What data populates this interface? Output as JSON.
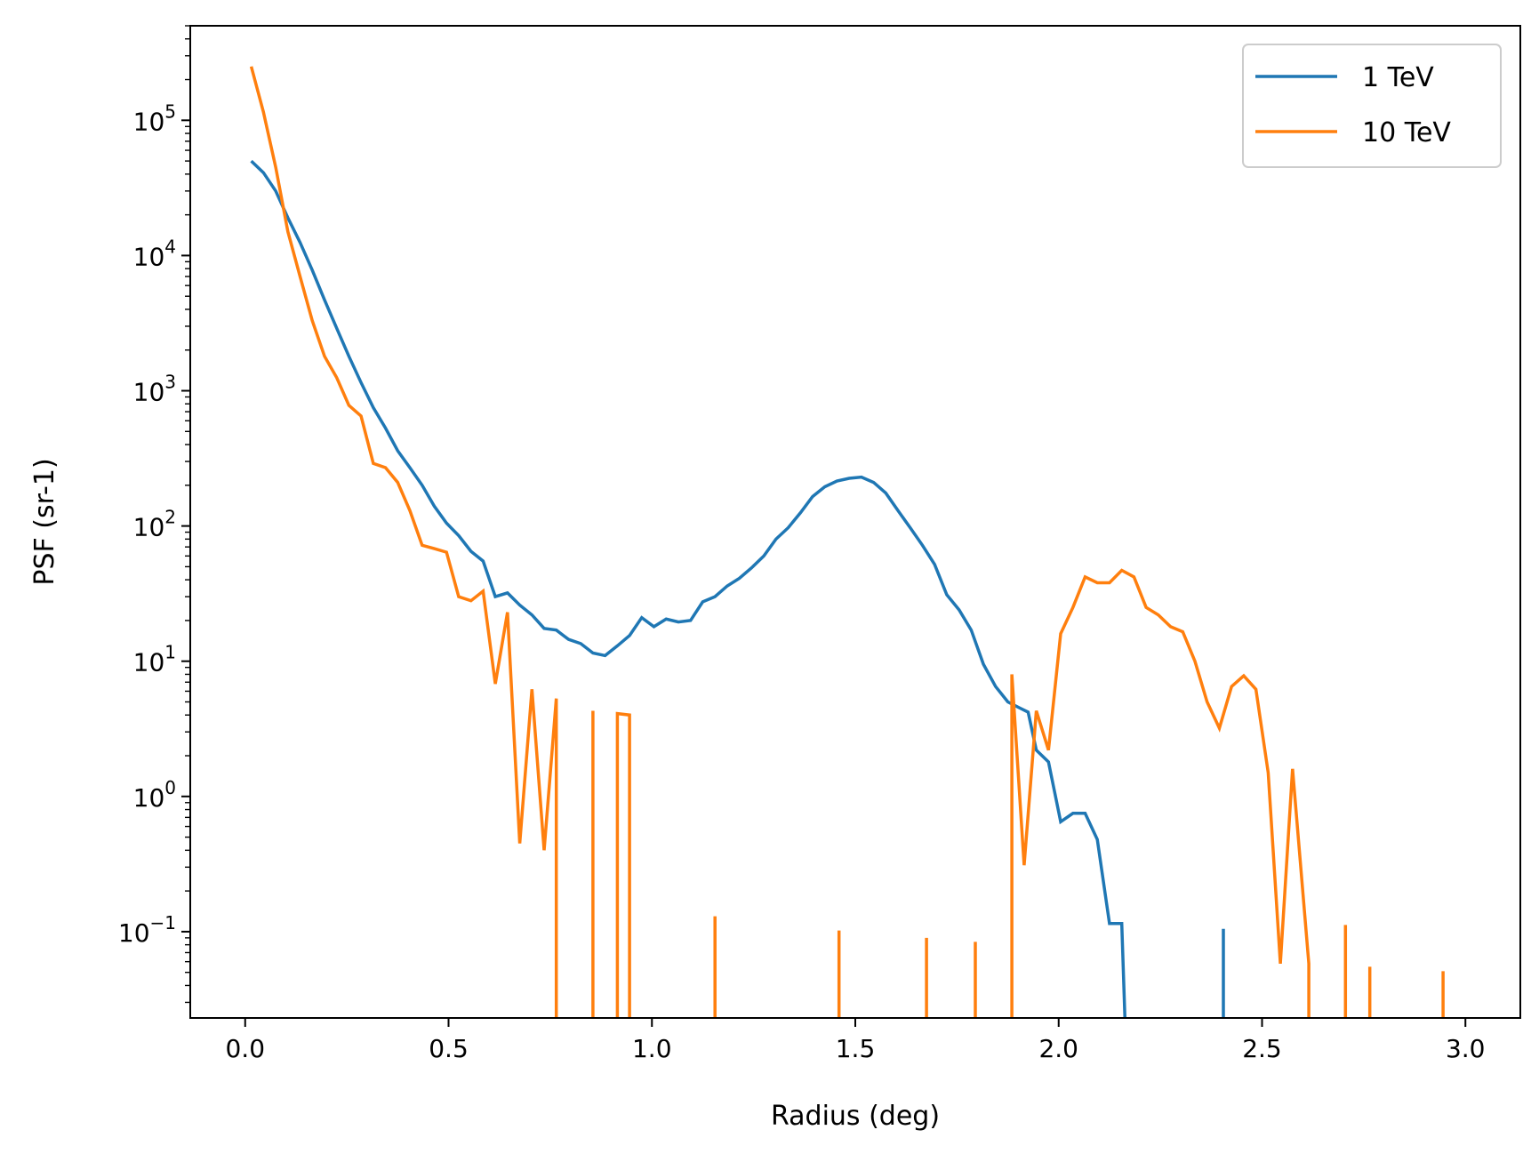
{
  "chart_data": {
    "type": "line",
    "xlabel": "Radius (deg)",
    "ylabel": "PSF (sr-1)",
    "xlim": [
      -0.135,
      3.135
    ],
    "ylim": [
      0.023,
      500000
    ],
    "yscale": "log",
    "grid": false,
    "legend": "top-right",
    "x_ticks": [
      "0.0",
      "0.5",
      "1.0",
      "1.5",
      "2.0",
      "2.5",
      "3.0"
    ],
    "y_ticks": [
      {
        "base": "10",
        "exp": "−1"
      },
      {
        "base": "10",
        "exp": "0"
      },
      {
        "base": "10",
        "exp": "1"
      },
      {
        "base": "10",
        "exp": "2"
      },
      {
        "base": "10",
        "exp": "3"
      },
      {
        "base": "10",
        "exp": "4"
      },
      {
        "base": "10",
        "exp": "5"
      }
    ],
    "series": [
      {
        "name": "1 TeV",
        "color": "#1f77b4",
        "points": [
          [
            0.015,
            50000
          ],
          [
            0.045,
            41000
          ],
          [
            0.075,
            30000
          ],
          [
            0.105,
            19000
          ],
          [
            0.135,
            12500
          ],
          [
            0.165,
            7800
          ],
          [
            0.195,
            4700
          ],
          [
            0.225,
            2900
          ],
          [
            0.255,
            1800
          ],
          [
            0.285,
            1150
          ],
          [
            0.315,
            750
          ],
          [
            0.345,
            530
          ],
          [
            0.375,
            360
          ],
          [
            0.405,
            270
          ],
          [
            0.435,
            200
          ],
          [
            0.465,
            140
          ],
          [
            0.495,
            105
          ],
          [
            0.525,
            85
          ],
          [
            0.555,
            65
          ],
          [
            0.585,
            55
          ],
          [
            0.615,
            30
          ],
          [
            0.645,
            32
          ],
          [
            0.675,
            26
          ],
          [
            0.705,
            22
          ],
          [
            0.735,
            17.5
          ],
          [
            0.765,
            17
          ],
          [
            0.795,
            14.5
          ],
          [
            0.825,
            13.5
          ],
          [
            0.855,
            11.5
          ],
          [
            0.885,
            11
          ],
          [
            0.915,
            13
          ],
          [
            0.945,
            15.5
          ],
          [
            0.975,
            21
          ],
          [
            1.005,
            18
          ],
          [
            1.035,
            20.5
          ],
          [
            1.065,
            19.5
          ],
          [
            1.095,
            20
          ],
          [
            1.125,
            27.5
          ],
          [
            1.155,
            30
          ],
          [
            1.185,
            36
          ],
          [
            1.215,
            41
          ],
          [
            1.245,
            49
          ],
          [
            1.275,
            60
          ],
          [
            1.305,
            80
          ],
          [
            1.335,
            97
          ],
          [
            1.365,
            125
          ],
          [
            1.395,
            165
          ],
          [
            1.425,
            195
          ],
          [
            1.455,
            215
          ],
          [
            1.485,
            225
          ],
          [
            1.515,
            230
          ],
          [
            1.545,
            210
          ],
          [
            1.575,
            175
          ],
          [
            1.605,
            130
          ],
          [
            1.635,
            97
          ],
          [
            1.665,
            72
          ],
          [
            1.695,
            52
          ],
          [
            1.725,
            31
          ],
          [
            1.755,
            24
          ],
          [
            1.785,
            17
          ],
          [
            1.815,
            9.5
          ],
          [
            1.845,
            6.5
          ],
          [
            1.875,
            5
          ],
          [
            1.905,
            4.5
          ],
          [
            1.925,
            4.2
          ],
          [
            1.945,
            2.2
          ],
          [
            1.975,
            1.8
          ],
          [
            2.005,
            0.65
          ],
          [
            2.035,
            0.75
          ],
          [
            2.065,
            0.75
          ],
          [
            2.095,
            0.48
          ],
          [
            2.125,
            0.115
          ],
          [
            2.155,
            0.115
          ],
          [
            2.165,
            0.015
          ],
          null,
          [
            2.405,
            0.015
          ],
          [
            2.405,
            0.105
          ],
          [
            2.405,
            0.015
          ]
        ]
      },
      {
        "name": "10 TeV",
        "color": "#ff7f0e",
        "points": [
          [
            0.015,
            250000
          ],
          [
            0.045,
            115000
          ],
          [
            0.075,
            45000
          ],
          [
            0.105,
            15000
          ],
          [
            0.135,
            7000
          ],
          [
            0.165,
            3300
          ],
          [
            0.195,
            1800
          ],
          [
            0.225,
            1250
          ],
          [
            0.255,
            780
          ],
          [
            0.285,
            650
          ],
          [
            0.315,
            290
          ],
          [
            0.345,
            270
          ],
          [
            0.375,
            210
          ],
          [
            0.405,
            130
          ],
          [
            0.435,
            72
          ],
          [
            0.465,
            68
          ],
          [
            0.495,
            64
          ],
          [
            0.525,
            30
          ],
          [
            0.555,
            28
          ],
          [
            0.585,
            33
          ],
          [
            0.615,
            6.8
          ],
          [
            0.645,
            23
          ],
          [
            0.675,
            0.45
          ],
          [
            0.705,
            6.2
          ],
          [
            0.735,
            0.4
          ],
          [
            0.765,
            5.3
          ],
          [
            0.765,
            0.015
          ],
          null,
          [
            0.855,
            0.015
          ],
          [
            0.855,
            4.3
          ],
          [
            0.855,
            0.015
          ],
          null,
          [
            0.915,
            0.015
          ],
          [
            0.915,
            4.1
          ],
          [
            0.945,
            4.0
          ],
          [
            0.945,
            0.015
          ],
          null,
          [
            1.155,
            0.015
          ],
          [
            1.155,
            0.13
          ],
          [
            1.155,
            0.015
          ],
          null,
          [
            1.46,
            0.015
          ],
          [
            1.46,
            0.102
          ],
          [
            1.46,
            0.015
          ],
          null,
          [
            1.675,
            0.015
          ],
          [
            1.675,
            0.09
          ],
          [
            1.675,
            0.015
          ],
          null,
          [
            1.795,
            0.015
          ],
          [
            1.795,
            0.084
          ],
          [
            1.795,
            0.015
          ],
          null,
          [
            1.885,
            0.015
          ],
          [
            1.885,
            8.0
          ],
          [
            1.915,
            0.31
          ],
          [
            1.945,
            4.3
          ],
          [
            1.975,
            2.2
          ],
          [
            2.005,
            16
          ],
          [
            2.035,
            25
          ],
          [
            2.065,
            42
          ],
          [
            2.095,
            38
          ],
          [
            2.125,
            38
          ],
          [
            2.155,
            47
          ],
          [
            2.185,
            42
          ],
          [
            2.215,
            25
          ],
          [
            2.245,
            22
          ],
          [
            2.275,
            18
          ],
          [
            2.305,
            16.5
          ],
          [
            2.335,
            10
          ],
          [
            2.365,
            5
          ],
          [
            2.395,
            3.2
          ],
          [
            2.425,
            6.5
          ],
          [
            2.455,
            7.8
          ],
          [
            2.485,
            6.2
          ],
          [
            2.515,
            1.5
          ],
          [
            2.545,
            0.058
          ],
          [
            2.575,
            1.6
          ],
          [
            2.615,
            0.058
          ],
          [
            2.615,
            0.015
          ],
          null,
          [
            2.705,
            0.015
          ],
          [
            2.705,
            0.112
          ],
          [
            2.705,
            0.015
          ],
          null,
          [
            2.765,
            0.015
          ],
          [
            2.765,
            0.055
          ],
          [
            2.765,
            0.015
          ],
          null,
          [
            2.945,
            0.015
          ],
          [
            2.945,
            0.051
          ],
          [
            2.945,
            0.015
          ]
        ]
      }
    ]
  }
}
